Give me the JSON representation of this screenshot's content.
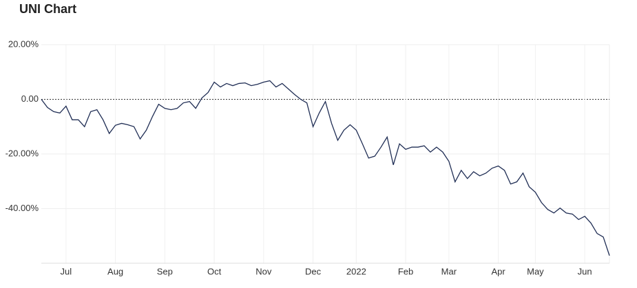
{
  "chart_data": {
    "type": "line",
    "title": "UNI Chart",
    "categories": [
      null,
      null,
      null,
      null,
      "Jul",
      null,
      null,
      null,
      null,
      null,
      null,
      null,
      "Aug",
      null,
      null,
      null,
      null,
      null,
      null,
      null,
      "Sep",
      null,
      null,
      null,
      null,
      null,
      null,
      null,
      "Oct",
      null,
      null,
      null,
      null,
      null,
      null,
      null,
      "Nov",
      null,
      null,
      null,
      null,
      null,
      null,
      null,
      "Dec",
      null,
      null,
      null,
      null,
      null,
      null,
      "2022",
      null,
      null,
      null,
      null,
      null,
      null,
      null,
      "Feb",
      null,
      null,
      null,
      null,
      null,
      null,
      "Mar",
      null,
      null,
      null,
      null,
      null,
      null,
      null,
      "Apr",
      null,
      null,
      null,
      null,
      null,
      "May",
      null,
      null,
      null,
      null,
      null,
      null,
      null,
      "Jun",
      null,
      null,
      null,
      null
    ],
    "values": [
      0,
      -3,
      -4.5,
      -5,
      -2.5,
      -7.5,
      -7.5,
      -10,
      -4.5,
      -3.8,
      -7.5,
      -12.5,
      -9.5,
      -8.8,
      -9.3,
      -10,
      -14.5,
      -11.3,
      -6.3,
      -1.8,
      -3.3,
      -3.8,
      -3.3,
      -1.3,
      -0.8,
      -3.3,
      0.5,
      2.5,
      6.3,
      4.5,
      5.8,
      5,
      5.8,
      6,
      5,
      5.5,
      6.3,
      6.8,
      4.5,
      5.8,
      3.8,
      1.8,
      0,
      -1.3,
      -10,
      -5,
      -0.8,
      -8.8,
      -15,
      -11.3,
      -9.3,
      -11.3,
      -16.3,
      -21.5,
      -20.8,
      -17.5,
      -13.8,
      -24,
      -16.3,
      -18.3,
      -17.5,
      -17.5,
      -17,
      -19.3,
      -17.5,
      -19.3,
      -22.7,
      -30.2,
      -26,
      -29,
      -26.5,
      -28,
      -27,
      -25.2,
      -24.4,
      -26,
      -31,
      -30.2,
      -27,
      -32,
      -34,
      -37.8,
      -40.3,
      -41.6,
      -39.8,
      -41.6,
      -42,
      -44,
      -42.8,
      -45.3,
      -49.1,
      -50.4,
      -57.2
    ],
    "color": "#1f2d54",
    "ylim": [
      -60,
      20
    ],
    "yticks": [
      {
        "value": 20,
        "label": "20.00%"
      },
      {
        "value": 0,
        "label": "0.00"
      },
      {
        "value": -20,
        "label": "-20.00%"
      },
      {
        "value": -40,
        "label": "-40.00%"
      }
    ],
    "grid": true
  }
}
